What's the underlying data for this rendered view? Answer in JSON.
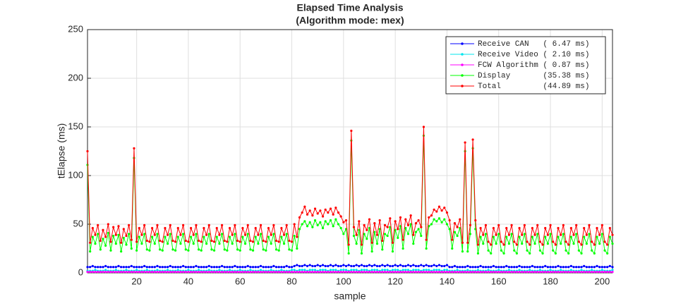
{
  "chart_data": {
    "type": "line",
    "title": "Elapsed Time Analysis",
    "subtitle": "(Algorithm mode: mex)",
    "x_label": "sample",
    "y_label": "tElapse (ms)",
    "xlim": [
      1,
      204
    ],
    "ylim": [
      0,
      250
    ],
    "xticks": [
      20,
      40,
      60,
      80,
      100,
      120,
      140,
      160,
      180,
      200
    ],
    "yticks": [
      0,
      50,
      100,
      150,
      200,
      250
    ],
    "grid": true,
    "legend": "northeast",
    "x": [
      1,
      2,
      3,
      4,
      5,
      6,
      7,
      8,
      9,
      10,
      11,
      12,
      13,
      14,
      15,
      16,
      17,
      18,
      19,
      20,
      21,
      22,
      23,
      24,
      25,
      26,
      27,
      28,
      29,
      30,
      31,
      32,
      33,
      34,
      35,
      36,
      37,
      38,
      39,
      40,
      41,
      42,
      43,
      44,
      45,
      46,
      47,
      48,
      49,
      50,
      51,
      52,
      53,
      54,
      55,
      56,
      57,
      58,
      59,
      60,
      61,
      62,
      63,
      64,
      65,
      66,
      67,
      68,
      69,
      70,
      71,
      72,
      73,
      74,
      75,
      76,
      77,
      78,
      79,
      80,
      81,
      82,
      83,
      84,
      85,
      86,
      87,
      88,
      89,
      90,
      91,
      92,
      93,
      94,
      95,
      96,
      97,
      98,
      99,
      100,
      101,
      102,
      103,
      104,
      105,
      106,
      107,
      108,
      109,
      110,
      111,
      112,
      113,
      114,
      115,
      116,
      117,
      118,
      119,
      120,
      121,
      122,
      123,
      124,
      125,
      126,
      127,
      128,
      129,
      130,
      131,
      132,
      133,
      134,
      135,
      136,
      137,
      138,
      139,
      140,
      141,
      142,
      143,
      144,
      145,
      146,
      147,
      148,
      149,
      150,
      151,
      152,
      153,
      154,
      155,
      156,
      157,
      158,
      159,
      160,
      161,
      162,
      163,
      164,
      165,
      166,
      167,
      168,
      169,
      170,
      171,
      172,
      173,
      174,
      175,
      176,
      177,
      178,
      179,
      180,
      181,
      182,
      183,
      184,
      185,
      186,
      187,
      188,
      189,
      190,
      191,
      192,
      193,
      194,
      195,
      196,
      197,
      198,
      199,
      200,
      201,
      202,
      203,
      204
    ],
    "series": [
      {
        "name": "Receive CAN   ( 6.47 ms)",
        "color": "#0000ff",
        "values": [
          6,
          6,
          7,
          6,
          6,
          6,
          6,
          7,
          6,
          6,
          6,
          6,
          7,
          6,
          6,
          6,
          6,
          7,
          6,
          6,
          6,
          6,
          7,
          6,
          6,
          6,
          6,
          7,
          6,
          6,
          6,
          6,
          7,
          6,
          6,
          6,
          6,
          7,
          6,
          6,
          6,
          6,
          7,
          6,
          6,
          6,
          6,
          7,
          6,
          6,
          6,
          6,
          7,
          6,
          6,
          6,
          6,
          7,
          6,
          6,
          6,
          6,
          7,
          6,
          6,
          6,
          6,
          7,
          6,
          6,
          6,
          6,
          7,
          6,
          6,
          6,
          6,
          7,
          6,
          6,
          7,
          8,
          7,
          7,
          8,
          7,
          8,
          7,
          7,
          8,
          7,
          8,
          7,
          7,
          8,
          7,
          8,
          7,
          7,
          8,
          7,
          8,
          7,
          7,
          8,
          7,
          8,
          7,
          7,
          8,
          7,
          8,
          7,
          7,
          8,
          7,
          8,
          7,
          7,
          8,
          7,
          8,
          7,
          7,
          8,
          7,
          8,
          7,
          7,
          8,
          7,
          8,
          7,
          7,
          8,
          7,
          8,
          7,
          7,
          8,
          6,
          6,
          7,
          6,
          6,
          6,
          6,
          7,
          6,
          6,
          6,
          6,
          7,
          6,
          6,
          6,
          6,
          7,
          6,
          6,
          6,
          6,
          7,
          6,
          6,
          6,
          6,
          7,
          6,
          6,
          6,
          6,
          7,
          6,
          6,
          6,
          6,
          7,
          6,
          6,
          6,
          6,
          7,
          6,
          6,
          6,
          6,
          7,
          6,
          6,
          6,
          6,
          7,
          6,
          6,
          6,
          6,
          7,
          6,
          6,
          6,
          6,
          7,
          6
        ]
      },
      {
        "name": "Receive Video ( 2.10 ms)",
        "color": "#00e5ee",
        "values": [
          2,
          2,
          2,
          3,
          2,
          2,
          2,
          3,
          2,
          2,
          2,
          3,
          2,
          2,
          2,
          3,
          2,
          2,
          2,
          3,
          2,
          2,
          2,
          3,
          2,
          2,
          2,
          3,
          2,
          2,
          2,
          3,
          2,
          2,
          2,
          3,
          2,
          2,
          2,
          3,
          2,
          2,
          2,
          3,
          2,
          2,
          2,
          3,
          2,
          2,
          2,
          3,
          2,
          2,
          2,
          3,
          2,
          2,
          2,
          3,
          2,
          2,
          2,
          3,
          2,
          2,
          2,
          3,
          2,
          2,
          2,
          3,
          2,
          2,
          2,
          3,
          2,
          2,
          2,
          3,
          3,
          2,
          3,
          3,
          3,
          2,
          3,
          3,
          3,
          2,
          3,
          3,
          3,
          2,
          3,
          3,
          3,
          2,
          3,
          3,
          3,
          2,
          3,
          3,
          3,
          2,
          3,
          3,
          3,
          2,
          3,
          3,
          3,
          2,
          3,
          3,
          3,
          2,
          3,
          3,
          3,
          2,
          3,
          3,
          3,
          2,
          3,
          3,
          3,
          2,
          3,
          3,
          3,
          2,
          3,
          3,
          3,
          2,
          3,
          3,
          2,
          2,
          2,
          3,
          2,
          2,
          2,
          3,
          2,
          2,
          2,
          3,
          2,
          2,
          2,
          3,
          2,
          2,
          2,
          3,
          2,
          2,
          2,
          3,
          2,
          2,
          2,
          3,
          2,
          2,
          2,
          3,
          2,
          2,
          2,
          3,
          2,
          2,
          2,
          3,
          2,
          2,
          2,
          3,
          2,
          2,
          2,
          3,
          2,
          2,
          2,
          3,
          2,
          2,
          2,
          3,
          2,
          2,
          2,
          3,
          2,
          2,
          2,
          3
        ]
      },
      {
        "name": "FCW Algorithm ( 0.87 ms)",
        "color": "#ff00ff",
        "values": [
          1,
          1,
          1,
          1,
          1,
          1,
          1,
          1,
          1,
          1,
          1,
          1,
          1,
          1,
          1,
          1,
          1,
          1,
          1,
          1,
          1,
          1,
          1,
          1,
          1,
          1,
          1,
          1,
          1,
          1,
          1,
          1,
          1,
          1,
          1,
          1,
          1,
          1,
          1,
          1,
          1,
          1,
          1,
          1,
          1,
          1,
          1,
          1,
          1,
          1,
          1,
          1,
          1,
          1,
          1,
          1,
          1,
          1,
          1,
          1,
          1,
          1,
          1,
          1,
          1,
          1,
          1,
          1,
          1,
          1,
          1,
          1,
          1,
          1,
          1,
          1,
          1,
          1,
          1,
          1,
          1,
          1,
          1,
          1,
          1,
          1,
          1,
          1,
          1,
          1,
          1,
          1,
          1,
          1,
          1,
          1,
          1,
          1,
          1,
          1,
          1,
          1,
          1,
          1,
          1,
          1,
          1,
          1,
          1,
          1,
          1,
          1,
          1,
          1,
          1,
          1,
          1,
          1,
          1,
          1,
          1,
          1,
          1,
          1,
          1,
          1,
          1,
          1,
          1,
          1,
          1,
          1,
          1,
          1,
          1,
          1,
          1,
          1,
          1,
          1,
          1,
          1,
          1,
          1,
          1,
          1,
          1,
          1,
          1,
          1,
          1,
          1,
          1,
          1,
          1,
          1,
          1,
          1,
          1,
          1,
          1,
          1,
          1,
          1,
          1,
          1,
          1,
          1,
          1,
          1,
          1,
          1,
          1,
          1,
          1,
          1,
          1,
          1,
          1,
          1,
          1,
          1,
          1,
          1,
          1,
          1,
          1,
          1,
          1,
          1,
          1,
          1,
          1,
          1,
          1,
          1,
          1,
          1,
          1,
          1,
          1,
          1,
          1,
          1
        ]
      },
      {
        "name": "Display       (35.38 ms)",
        "color": "#00ff00",
        "values": [
          111,
          22,
          37,
          30,
          40,
          24,
          35,
          28,
          41,
          23,
          38,
          30,
          39,
          22,
          36,
          29,
          40,
          25,
          118,
          23,
          37,
          30,
          40,
          24,
          23,
          37,
          30,
          40,
          24,
          23,
          37,
          30,
          40,
          24,
          23,
          37,
          30,
          40,
          24,
          23,
          37,
          30,
          40,
          24,
          23,
          37,
          30,
          40,
          24,
          23,
          37,
          30,
          40,
          24,
          23,
          37,
          30,
          40,
          24,
          23,
          37,
          30,
          40,
          24,
          23,
          37,
          30,
          40,
          24,
          23,
          37,
          30,
          40,
          24,
          23,
          37,
          30,
          40,
          24,
          23,
          38,
          25,
          45,
          50,
          53,
          48,
          52,
          47,
          54,
          49,
          52,
          46,
          53,
          50,
          54,
          48,
          55,
          50,
          46,
          40,
          45,
          20,
          136,
          38,
          30,
          44,
          20,
          40,
          35,
          46,
          22,
          42,
          30,
          45,
          24,
          40,
          38,
          47,
          22,
          44,
          36,
          48,
          25,
          46,
          40,
          50,
          30,
          42,
          45,
          38,
          141,
          25,
          48,
          50,
          55,
          53,
          56,
          52,
          55,
          50,
          45,
          25,
          42,
          38,
          46,
          22,
          125,
          22,
          40,
          128,
          45,
          20,
          37,
          30,
          40,
          23,
          20,
          37,
          30,
          40,
          23,
          20,
          37,
          30,
          40,
          23,
          20,
          37,
          30,
          40,
          23,
          20,
          37,
          30,
          40,
          23,
          20,
          37,
          30,
          40,
          23,
          20,
          37,
          30,
          40,
          23,
          20,
          37,
          30,
          40,
          23,
          20,
          37,
          30,
          40,
          23,
          20,
          37,
          30,
          40,
          23,
          20,
          37,
          30
        ]
      },
      {
        "name": "Total         (44.89 ms)",
        "color": "#ff0000",
        "values": [
          125,
          31,
          46,
          39,
          49,
          33,
          44,
          37,
          50,
          32,
          47,
          39,
          48,
          31,
          45,
          38,
          49,
          34,
          128,
          32,
          46,
          39,
          49,
          33,
          32,
          46,
          39,
          49,
          33,
          32,
          46,
          39,
          49,
          33,
          32,
          46,
          39,
          49,
          33,
          32,
          46,
          39,
          49,
          33,
          32,
          46,
          39,
          49,
          33,
          32,
          46,
          39,
          49,
          33,
          32,
          46,
          39,
          49,
          33,
          32,
          46,
          39,
          49,
          33,
          32,
          46,
          39,
          49,
          33,
          32,
          46,
          39,
          49,
          33,
          32,
          46,
          39,
          49,
          33,
          32,
          50,
          37,
          57,
          62,
          68,
          60,
          64,
          59,
          66,
          61,
          64,
          58,
          65,
          62,
          66,
          60,
          67,
          62,
          58,
          52,
          54,
          29,
          146,
          47,
          39,
          53,
          29,
          49,
          44,
          55,
          31,
          51,
          39,
          54,
          33,
          49,
          47,
          56,
          31,
          53,
          45,
          57,
          34,
          55,
          49,
          59,
          39,
          51,
          54,
          47,
          150,
          34,
          57,
          59,
          65,
          63,
          68,
          64,
          67,
          62,
          54,
          34,
          51,
          47,
          55,
          31,
          134,
          31,
          49,
          137,
          54,
          29,
          46,
          39,
          49,
          32,
          29,
          46,
          39,
          49,
          32,
          29,
          46,
          39,
          49,
          32,
          29,
          46,
          39,
          49,
          32,
          29,
          46,
          39,
          49,
          32,
          29,
          46,
          39,
          49,
          32,
          29,
          46,
          39,
          49,
          32,
          29,
          46,
          39,
          49,
          32,
          29,
          46,
          39,
          49,
          32,
          29,
          46,
          39,
          49,
          32,
          29,
          46,
          39
        ]
      }
    ]
  }
}
